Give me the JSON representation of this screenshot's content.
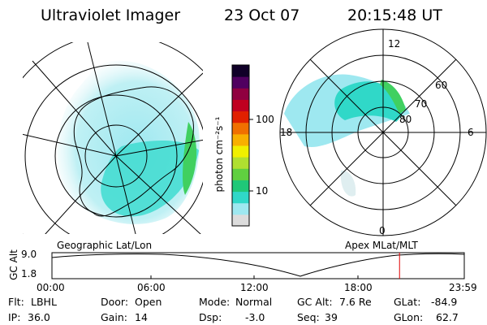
{
  "header": {
    "instrument": "Ultraviolet Imager",
    "date": "23 Oct 07",
    "time": "20:15:48 UT"
  },
  "colorbar": {
    "unit_label": "photon cm⁻²s⁻¹",
    "ticks": [
      "100",
      "10"
    ],
    "scale": "log",
    "colors": [
      "#dcdcdc",
      "#9ee8f0",
      "#30d8c8",
      "#20c878",
      "#60d040",
      "#b0e030",
      "#f0f000",
      "#f8b000",
      "#f07000",
      "#e02000",
      "#c00020",
      "#900040",
      "#500060",
      "#100028"
    ]
  },
  "left_panel": {
    "caption": "Geographic Lat/Lon"
  },
  "right_panel": {
    "caption": "Apex MLat/MLT",
    "mlt_labels": {
      "top": "12",
      "left": "18",
      "right": "6",
      "bottom": "0"
    },
    "mlat_labels": [
      "60",
      "70",
      "80"
    ]
  },
  "altitude_plot": {
    "ylabel": "GC Alt",
    "y_ticks": [
      "9.0",
      "1.8"
    ],
    "x_ticks": [
      "00:00",
      "06:00",
      "12:00",
      "18:00",
      "23:59"
    ],
    "current_time_marker_fraction": 0.843,
    "marker_color": "#e00000"
  },
  "status": {
    "row1": [
      {
        "key": "Flt:",
        "value": "LBHL"
      },
      {
        "key": "Door:",
        "value": "Open"
      },
      {
        "key": "Mode:",
        "value": "Normal"
      },
      {
        "key": "GC Alt:",
        "value": "7.6 Re"
      },
      {
        "key": "GLat:",
        "value": "-84.9"
      }
    ],
    "row2": [
      {
        "key": "IP:",
        "value": "36.0"
      },
      {
        "key": "Gain:",
        "value": "14"
      },
      {
        "key": "Dsp:",
        "value": "-3.0"
      },
      {
        "key": "Seq:",
        "value": "39"
      },
      {
        "key": "GLon:",
        "value": "62.7"
      }
    ]
  }
}
